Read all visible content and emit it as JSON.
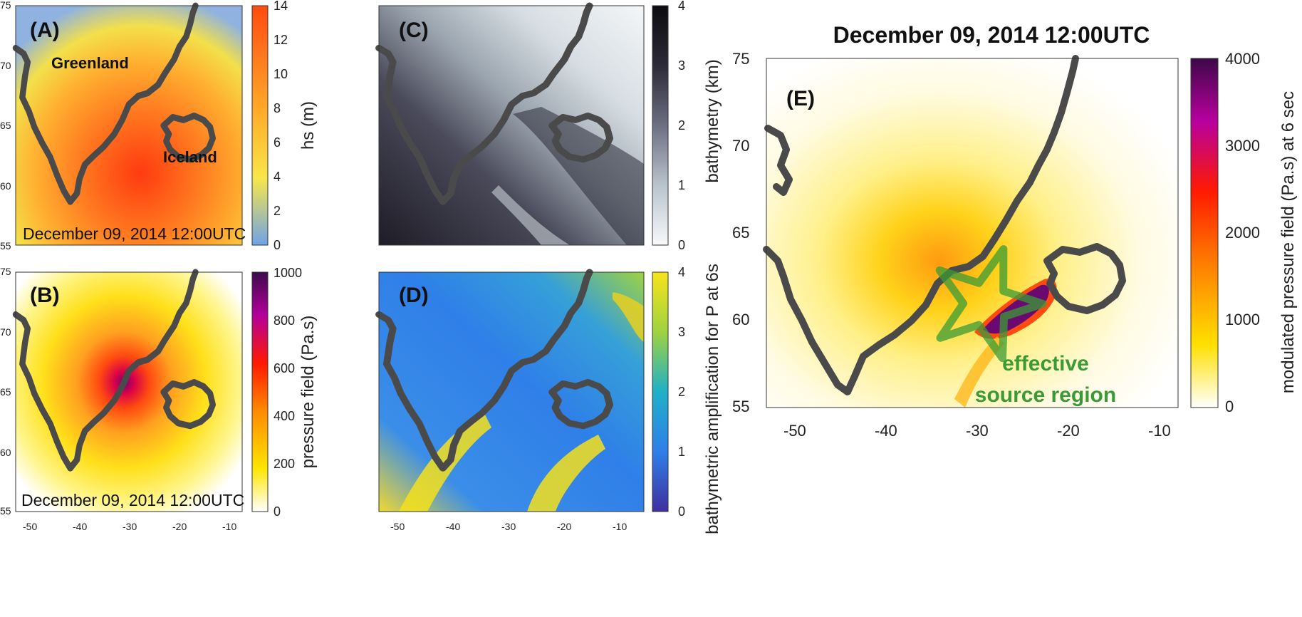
{
  "figure": {
    "title": "December 09, 2014 12:00UTC",
    "panels": {
      "A": {
        "label": "(A)",
        "date": "December 09, 2014 12:00UTC",
        "place_labels": [
          "Greenland",
          "Iceland"
        ],
        "colorbar": {
          "label": "hs (m)",
          "ticks": [
            "0",
            "2",
            "4",
            "6",
            "8",
            "10",
            "12",
            "14"
          ],
          "colors": [
            "#6fa3e8",
            "#f8e64a",
            "#ffad2a",
            "#ff4a10"
          ]
        }
      },
      "B": {
        "label": "(B)",
        "date": "December 09, 2014 12:00UTC",
        "colorbar": {
          "label": "pressure field (Pa.s)",
          "ticks": [
            "0",
            "200",
            "400",
            "600",
            "800",
            "1000"
          ],
          "colors": [
            "#ffffff",
            "#ffe500",
            "#ff8a00",
            "#ff1a00",
            "#b4009a",
            "#3c0a4e"
          ]
        }
      },
      "C": {
        "label": "(C)",
        "colorbar": {
          "label": "bathymetry (km)",
          "ticks": [
            "0",
            "1",
            "2",
            "3",
            "4"
          ],
          "colors": [
            "#f8f9fb",
            "#b9c4cc",
            "#6d6f82",
            "#2c2a36",
            "#0c0c10"
          ]
        }
      },
      "D": {
        "label": "(D)",
        "colorbar": {
          "label": "bathymetric amplification for P at 6s",
          "ticks": [
            "0",
            "1",
            "2",
            "3",
            "4"
          ],
          "colors": [
            "#3e2fa0",
            "#2f7fe8",
            "#1fb0c8",
            "#9fd240",
            "#f8e41a"
          ]
        }
      },
      "E": {
        "label": "(E)",
        "annotation_line1": "effective",
        "annotation_line2": "source region",
        "colorbar": {
          "label": "modulated pressure field (Pa.s) at 6 sec",
          "ticks": [
            "0",
            "1000",
            "2000",
            "3000",
            "4000"
          ],
          "colors": [
            "#ffffff",
            "#ffe000",
            "#ff7a00",
            "#ff1a00",
            "#b8009e",
            "#3d0849"
          ]
        }
      }
    },
    "axes_small": {
      "x_ticks": [
        "-50",
        "-40",
        "-30",
        "-20",
        "-10"
      ],
      "y_ticks": [
        "55",
        "60",
        "65",
        "70",
        "75"
      ]
    },
    "axes_large": {
      "x_ticks": [
        "-50",
        "-40",
        "-30",
        "-20",
        "-10"
      ],
      "y_ticks": [
        "55",
        "60",
        "65",
        "70",
        "75"
      ]
    },
    "coastline_color": "#4a4a4a",
    "star_color": "#3a9b35"
  }
}
